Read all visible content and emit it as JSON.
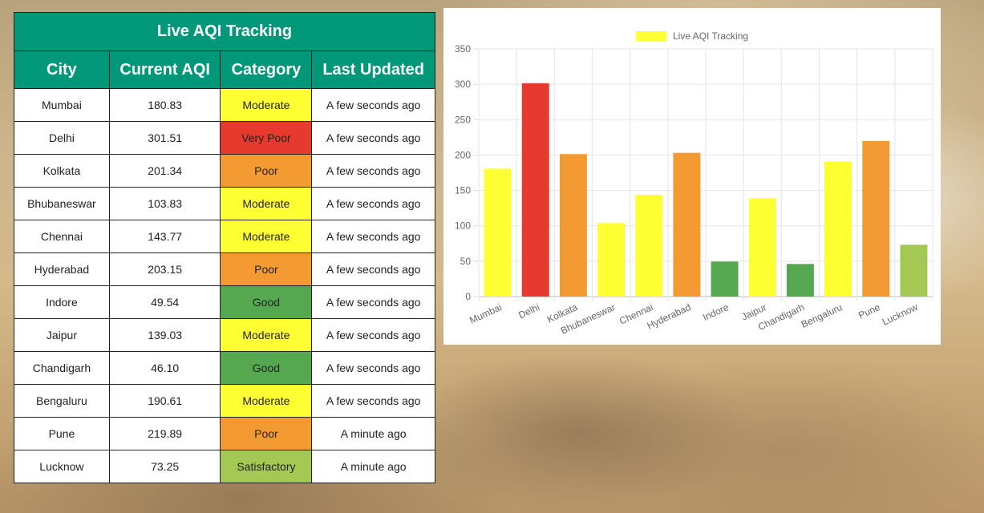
{
  "table": {
    "title": "Live AQI Tracking",
    "headers": [
      "City",
      "Current AQI",
      "Category",
      "Last Updated"
    ],
    "rows": [
      {
        "city": "Mumbai",
        "aqi": "180.83",
        "category": "Moderate",
        "color": "#ffff33",
        "updated": "A few seconds ago"
      },
      {
        "city": "Delhi",
        "aqi": "301.51",
        "category": "Very Poor",
        "color": "#e63a2e",
        "updated": "A few seconds ago"
      },
      {
        "city": "Kolkata",
        "aqi": "201.34",
        "category": "Poor",
        "color": "#f39b32",
        "updated": "A few seconds ago"
      },
      {
        "city": "Bhubaneswar",
        "aqi": "103.83",
        "category": "Moderate",
        "color": "#ffff33",
        "updated": "A few seconds ago"
      },
      {
        "city": "Chennai",
        "aqi": "143.77",
        "category": "Moderate",
        "color": "#ffff33",
        "updated": "A few seconds ago"
      },
      {
        "city": "Hyderabad",
        "aqi": "203.15",
        "category": "Poor",
        "color": "#f39b32",
        "updated": "A few seconds ago"
      },
      {
        "city": "Indore",
        "aqi": "49.54",
        "category": "Good",
        "color": "#55a84f",
        "updated": "A few seconds ago"
      },
      {
        "city": "Jaipur",
        "aqi": "139.03",
        "category": "Moderate",
        "color": "#ffff33",
        "updated": "A few seconds ago"
      },
      {
        "city": "Chandigarh",
        "aqi": "46.10",
        "category": "Good",
        "color": "#55a84f",
        "updated": "A few seconds ago"
      },
      {
        "city": "Bengaluru",
        "aqi": "190.61",
        "category": "Moderate",
        "color": "#ffff33",
        "updated": "A few seconds ago"
      },
      {
        "city": "Pune",
        "aqi": "219.89",
        "category": "Poor",
        "color": "#f39b32",
        "updated": "A minute ago"
      },
      {
        "city": "Lucknow",
        "aqi": "73.25",
        "category": "Satisfactory",
        "color": "#a3c853",
        "updated": "A minute ago"
      }
    ]
  },
  "chart_data": {
    "type": "bar",
    "title": "",
    "xlabel": "",
    "ylabel": "",
    "legend": {
      "label": "Live AQI Tracking",
      "color": "#ffff33",
      "placement": "top"
    },
    "grid": true,
    "ylim": [
      0,
      350
    ],
    "yticks": [
      0,
      50,
      100,
      150,
      200,
      250,
      300,
      350
    ],
    "categories": [
      "Mumbai",
      "Delhi",
      "Kolkata",
      "Bhubaneswar",
      "Chennai",
      "Hyderabad",
      "Indore",
      "Jaipur",
      "Chandigarh",
      "Bengaluru",
      "Pune",
      "Lucknow"
    ],
    "series": [
      {
        "name": "Live AQI Tracking",
        "values": [
          180.83,
          301.51,
          201.34,
          103.83,
          143.77,
          203.15,
          49.54,
          139.03,
          46.1,
          190.61,
          219.89,
          73.25
        ],
        "colors": [
          "#ffff33",
          "#e63a2e",
          "#f39b32",
          "#ffff33",
          "#ffff33",
          "#f39b32",
          "#55a84f",
          "#ffff33",
          "#55a84f",
          "#ffff33",
          "#f39b32",
          "#a3c853"
        ]
      }
    ]
  }
}
